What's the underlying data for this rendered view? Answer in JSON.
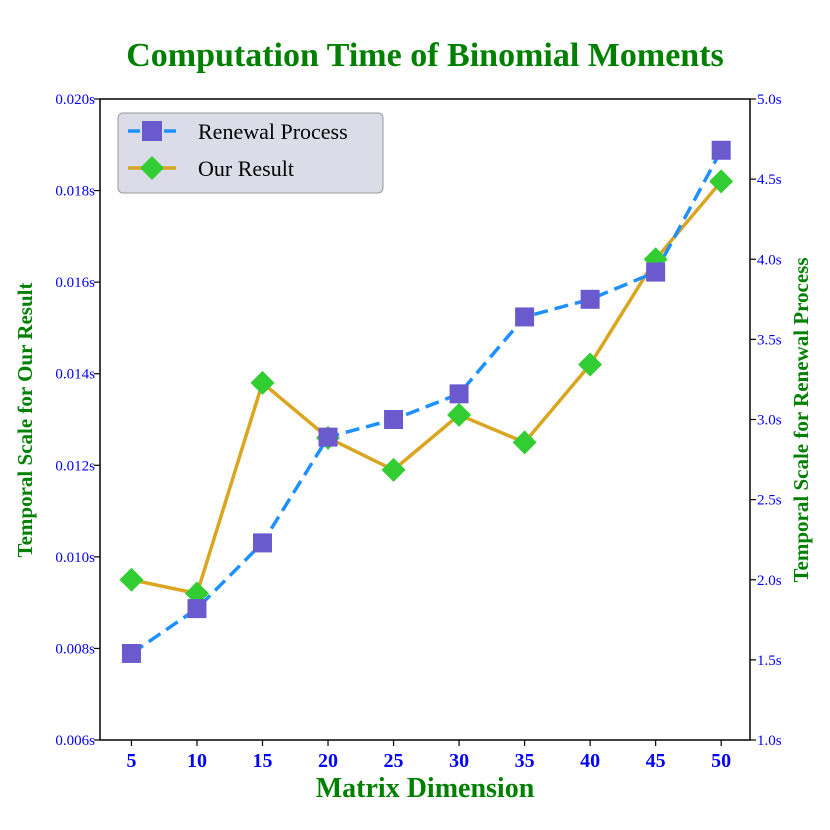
{
  "chart_data": {
    "type": "line",
    "title": "Computation Time of Binomial Moments",
    "xlabel": "Matrix Dimension",
    "ylabel_left": "Temporal Scale for Our Result",
    "ylabel_right": "Temporal Scale for Renewal Process",
    "x": [
      5,
      10,
      15,
      20,
      25,
      30,
      35,
      40,
      45,
      50
    ],
    "x_tick_labels": [
      "5",
      "10",
      "15",
      "20",
      "25",
      "30",
      "35",
      "40",
      "45",
      "50"
    ],
    "ylim_left": [
      0.006,
      0.02
    ],
    "y_left_tick_labels": [
      "0.006s",
      "0.008s",
      "0.010s",
      "0.012s",
      "0.014s",
      "0.016s",
      "0.018s",
      "0.020s"
    ],
    "ylim_right": [
      1.0,
      5.0
    ],
    "y_right_tick_labels": [
      "1.0s",
      "1.5s",
      "2.0s",
      "2.5s",
      "3.0s",
      "3.5s",
      "4.0s",
      "4.5s",
      "5.0s"
    ],
    "grid": false,
    "legend_position": "top-left",
    "series": [
      {
        "name": "Renewal Process",
        "axis": "right",
        "color": "#1e90ff",
        "marker_color": "#6a5acd",
        "marker": "square",
        "line_style": "dashed",
        "values": [
          1.54,
          1.82,
          2.23,
          2.89,
          3.0,
          3.16,
          3.64,
          3.75,
          3.92,
          4.68
        ]
      },
      {
        "name": "Our Result",
        "axis": "left",
        "color": "#daa520",
        "marker_color": "#32cd32",
        "marker": "diamond",
        "line_style": "solid",
        "values": [
          0.0095,
          0.0092,
          0.0138,
          0.0126,
          0.0119,
          0.0131,
          0.0125,
          0.0142,
          0.0165,
          0.0182
        ]
      }
    ],
    "colors": {
      "title": "#008000",
      "axis_label": "#008000",
      "tick_label": "#0000ff",
      "legend_bg": "#dcdce8"
    }
  }
}
